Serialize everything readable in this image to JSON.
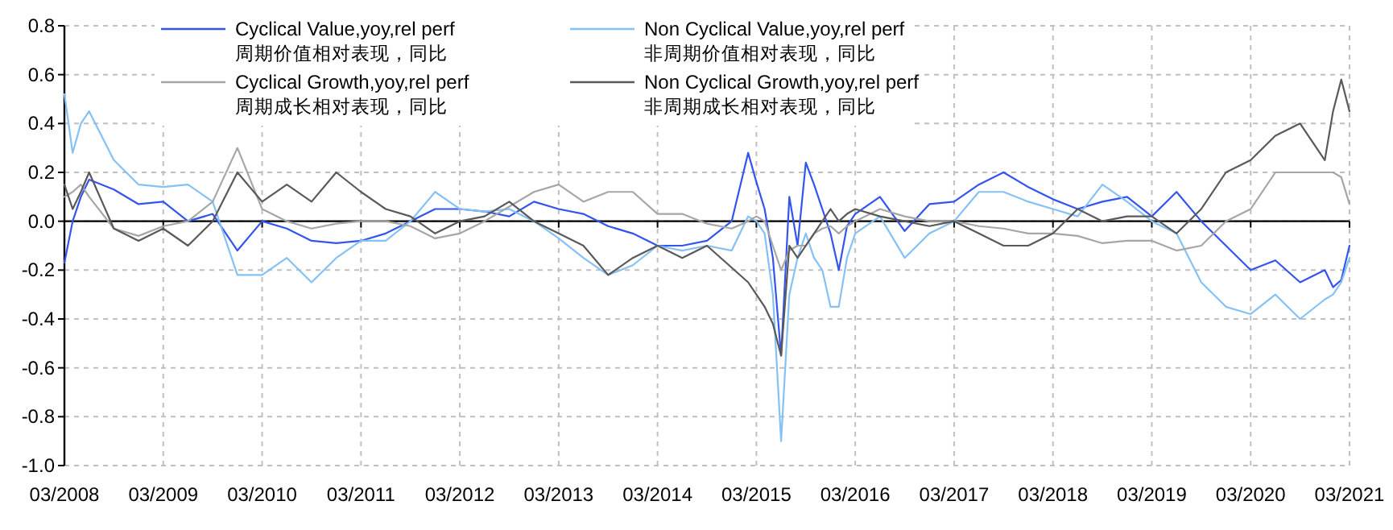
{
  "chart_data": {
    "type": "line",
    "x": [
      "2008-03",
      "2008-04",
      "2008-05",
      "2008-06",
      "2008-09",
      "2008-12",
      "2009-03",
      "2009-06",
      "2009-09",
      "2009-12",
      "2010-03",
      "2010-06",
      "2010-09",
      "2010-12",
      "2011-03",
      "2011-06",
      "2011-09",
      "2011-12",
      "2012-03",
      "2012-06",
      "2012-09",
      "2012-12",
      "2013-03",
      "2013-06",
      "2013-09",
      "2013-12",
      "2014-03",
      "2014-06",
      "2014-09",
      "2014-12",
      "2015-02",
      "2015-03",
      "2015-04",
      "2015-05",
      "2015-06",
      "2015-07",
      "2015-08",
      "2015-09",
      "2015-10",
      "2015-11",
      "2015-12",
      "2016-01",
      "2016-02",
      "2016-03",
      "2016-06",
      "2016-09",
      "2016-12",
      "2017-03",
      "2017-06",
      "2017-09",
      "2017-12",
      "2018-03",
      "2018-06",
      "2018-09",
      "2018-12",
      "2019-03",
      "2019-06",
      "2019-09",
      "2019-12",
      "2020-03",
      "2020-06",
      "2020-09",
      "2020-12",
      "2021-01",
      "2021-02",
      "2021-03"
    ],
    "series": [
      {
        "name": "Cyclical Value,yoy,rel perf\n周期价值相对表现，同比",
        "color": "#3355ee",
        "values": [
          -0.17,
          0.0,
          0.1,
          0.17,
          0.13,
          0.07,
          0.08,
          0.0,
          0.03,
          -0.12,
          0.0,
          -0.03,
          -0.08,
          -0.09,
          -0.08,
          -0.05,
          0.0,
          0.05,
          0.05,
          0.04,
          0.02,
          0.08,
          0.05,
          0.03,
          -0.02,
          -0.05,
          -0.1,
          -0.1,
          -0.08,
          0.0,
          0.28,
          0.16,
          0.05,
          -0.15,
          -0.55,
          0.1,
          -0.1,
          0.24,
          0.15,
          0.05,
          -0.05,
          -0.2,
          -0.02,
          0.03,
          0.1,
          -0.04,
          0.07,
          0.08,
          0.15,
          0.2,
          0.14,
          0.09,
          0.05,
          0.08,
          0.1,
          0.02,
          0.12,
          0.0,
          -0.1,
          -0.2,
          -0.16,
          -0.25,
          -0.2,
          -0.27,
          -0.24,
          -0.1
        ]
      },
      {
        "name": "Non Cyclical Value,yoy,rel perf\n非周期价值相对表现，同比",
        "color": "#85c1f5",
        "values": [
          0.52,
          0.28,
          0.4,
          0.45,
          0.25,
          0.15,
          0.14,
          0.15,
          0.08,
          -0.22,
          -0.22,
          -0.15,
          -0.25,
          -0.15,
          -0.08,
          -0.08,
          0.0,
          0.12,
          0.05,
          0.04,
          0.05,
          0.0,
          -0.07,
          -0.15,
          -0.22,
          -0.18,
          -0.1,
          -0.12,
          -0.1,
          -0.12,
          0.02,
          0.0,
          -0.05,
          -0.3,
          -0.9,
          -0.3,
          -0.15,
          -0.05,
          -0.15,
          -0.2,
          -0.35,
          -0.35,
          -0.15,
          -0.05,
          0.02,
          -0.15,
          -0.05,
          0.0,
          0.12,
          0.12,
          0.08,
          0.05,
          0.02,
          0.15,
          0.08,
          0.0,
          -0.05,
          -0.25,
          -0.35,
          -0.38,
          -0.3,
          -0.4,
          -0.32,
          -0.3,
          -0.25,
          -0.15
        ]
      },
      {
        "name": "Cyclical Growth,yoy,rel perf\n周期成长相对表现，同比",
        "color": "#a6a6a6",
        "values": [
          0.1,
          0.12,
          0.15,
          0.1,
          -0.03,
          -0.06,
          -0.02,
          0.0,
          0.08,
          0.3,
          0.05,
          0.0,
          -0.03,
          -0.01,
          0.0,
          0.0,
          -0.02,
          -0.07,
          -0.05,
          0.0,
          0.06,
          0.12,
          0.15,
          0.08,
          0.12,
          0.12,
          0.03,
          0.03,
          -0.01,
          -0.03,
          0.0,
          0.02,
          0.0,
          -0.1,
          -0.2,
          -0.12,
          -0.1,
          -0.1,
          -0.05,
          -0.03,
          -0.02,
          -0.05,
          -0.02,
          0.0,
          0.05,
          0.02,
          0.0,
          0.0,
          -0.02,
          -0.03,
          -0.05,
          -0.05,
          -0.06,
          -0.09,
          -0.08,
          -0.08,
          -0.12,
          -0.1,
          0.0,
          0.05,
          0.2,
          0.2,
          0.2,
          0.2,
          0.18,
          0.07
        ]
      },
      {
        "name": "Non Cyclical Growth,yoy,rel perf\n非周期成长相对表现，同比",
        "color": "#595959",
        "values": [
          0.15,
          0.05,
          0.12,
          0.2,
          -0.03,
          -0.08,
          -0.03,
          -0.1,
          0.0,
          0.2,
          0.08,
          0.15,
          0.08,
          0.2,
          0.12,
          0.05,
          0.02,
          -0.05,
          0.0,
          0.02,
          0.08,
          0.0,
          -0.05,
          -0.1,
          -0.22,
          -0.15,
          -0.1,
          -0.15,
          -0.1,
          -0.19,
          -0.25,
          -0.3,
          -0.35,
          -0.42,
          -0.55,
          -0.1,
          -0.15,
          -0.1,
          -0.05,
          0.0,
          0.05,
          0.0,
          0.03,
          0.05,
          0.02,
          0.0,
          -0.02,
          0.0,
          -0.05,
          -0.1,
          -0.1,
          -0.05,
          0.05,
          0.0,
          0.02,
          0.02,
          -0.05,
          0.05,
          0.2,
          0.25,
          0.35,
          0.4,
          0.25,
          0.45,
          0.58,
          0.45
        ]
      }
    ],
    "xlim": [
      "2008-03",
      "2021-03"
    ],
    "xticks": [
      {
        "value": "2008-03",
        "label": "03/2008"
      },
      {
        "value": "2009-03",
        "label": "03/2009"
      },
      {
        "value": "2010-03",
        "label": "03/2010"
      },
      {
        "value": "2011-03",
        "label": "03/2011"
      },
      {
        "value": "2012-03",
        "label": "03/2012"
      },
      {
        "value": "2013-03",
        "label": "03/2013"
      },
      {
        "value": "2014-03",
        "label": "03/2014"
      },
      {
        "value": "2015-03",
        "label": "03/2015"
      },
      {
        "value": "2016-03",
        "label": "03/2016"
      },
      {
        "value": "2017-03",
        "label": "03/2017"
      },
      {
        "value": "2018-03",
        "label": "03/2018"
      },
      {
        "value": "2019-03",
        "label": "03/2019"
      },
      {
        "value": "2020-03",
        "label": "03/2020"
      },
      {
        "value": "2021-03",
        "label": "03/2021"
      }
    ],
    "ylim": [
      -1.0,
      0.8
    ],
    "yticks": [
      0.8,
      0.6,
      0.4,
      0.2,
      {
        "value": 0,
        "label": "0.0"
      },
      -0.2,
      -0.4,
      -0.6,
      -0.8,
      {
        "value": -1,
        "label": "-1.0"
      }
    ],
    "grid": true,
    "legend": "top",
    "marker": "none",
    "line_style": "solid"
  }
}
